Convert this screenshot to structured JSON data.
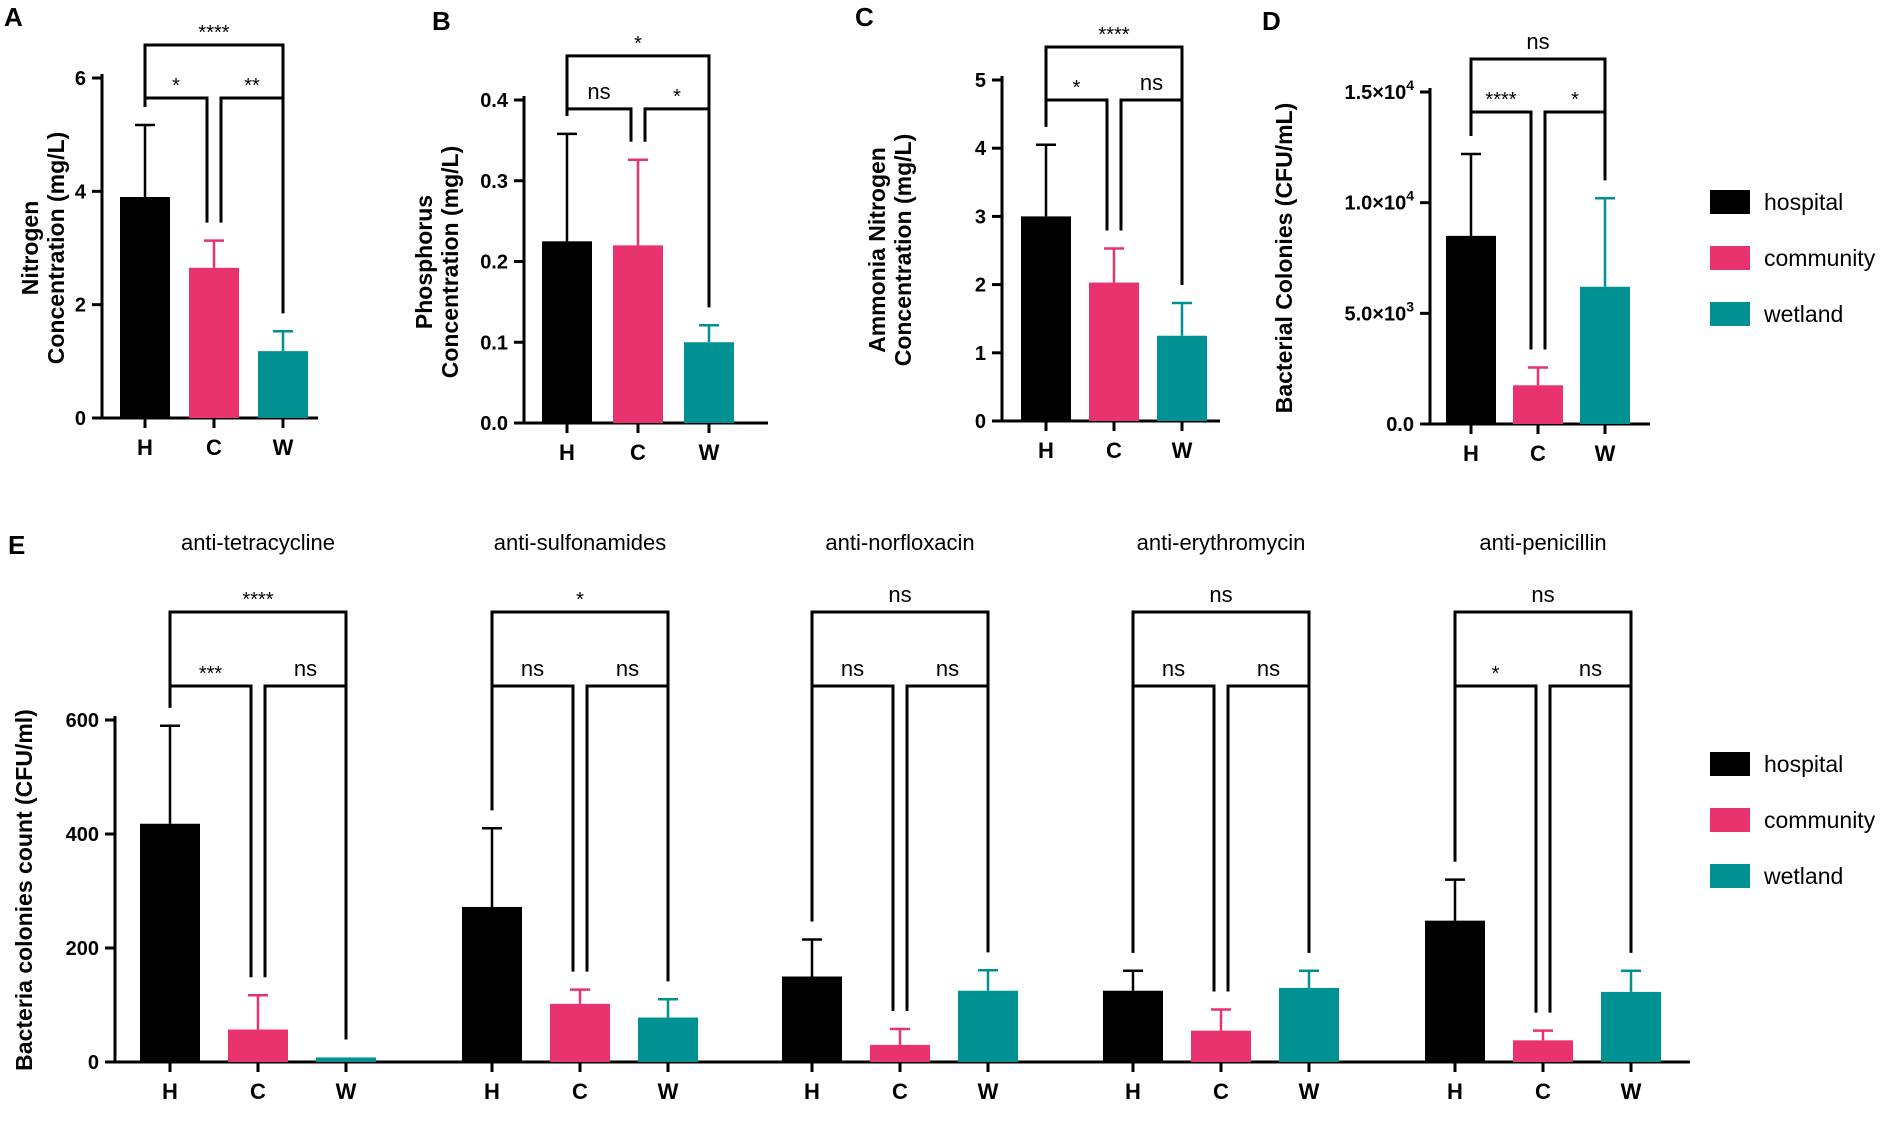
{
  "colors": {
    "hospital": "#000000",
    "community": "#e8336e",
    "wetland": "#009292"
  },
  "legend": [
    {
      "key": "hospital",
      "label": "hospital"
    },
    {
      "key": "community",
      "label": "community"
    },
    {
      "key": "wetland",
      "label": "wetland"
    }
  ],
  "chart_data": [
    {
      "panel": "A",
      "type": "bar",
      "ylabel": [
        "Nitrogen",
        "Concentration (mg/L)"
      ],
      "categories": [
        "H",
        "C",
        "W"
      ],
      "series_keys": [
        "hospital",
        "community",
        "wetland"
      ],
      "values": [
        3.9,
        2.65,
        1.18
      ],
      "errors": [
        1.27,
        0.48,
        0.35
      ],
      "ylim": [
        0,
        6
      ],
      "ticks": [
        0,
        2,
        4,
        6
      ],
      "tick_labels": [
        "0",
        "2",
        "4",
        "6"
      ],
      "comparisons": [
        {
          "from": 0,
          "to": 1,
          "label": "*"
        },
        {
          "from": 1,
          "to": 2,
          "label": "**"
        },
        {
          "from": 0,
          "to": 2,
          "label": "****"
        }
      ]
    },
    {
      "panel": "B",
      "type": "bar",
      "ylabel": [
        "Phosphorus",
        "Concentration (mg/L)"
      ],
      "categories": [
        "H",
        "C",
        "W"
      ],
      "series_keys": [
        "hospital",
        "community",
        "wetland"
      ],
      "values": [
        0.225,
        0.22,
        0.1
      ],
      "errors": [
        0.133,
        0.106,
        0.021
      ],
      "ylim": [
        0,
        0.4
      ],
      "ticks": [
        0,
        0.1,
        0.2,
        0.3,
        0.4
      ],
      "tick_labels": [
        "0.0",
        "0.1",
        "0.2",
        "0.3",
        "0.4"
      ],
      "comparisons": [
        {
          "from": 0,
          "to": 1,
          "label": "ns"
        },
        {
          "from": 1,
          "to": 2,
          "label": "*"
        },
        {
          "from": 0,
          "to": 2,
          "label": "*"
        }
      ]
    },
    {
      "panel": "C",
      "type": "bar",
      "ylabel": [
        "Ammonia Nitrogen",
        "Concentration (mg/L)"
      ],
      "categories": [
        "H",
        "C",
        "W"
      ],
      "series_keys": [
        "hospital",
        "community",
        "wetland"
      ],
      "values": [
        3.0,
        2.03,
        1.25
      ],
      "errors": [
        1.05,
        0.5,
        0.48
      ],
      "ylim": [
        0,
        5
      ],
      "ticks": [
        0,
        1,
        2,
        3,
        4,
        5
      ],
      "tick_labels": [
        "0",
        "1",
        "2",
        "3",
        "4",
        "5"
      ],
      "comparisons": [
        {
          "from": 0,
          "to": 1,
          "label": "*"
        },
        {
          "from": 1,
          "to": 2,
          "label": "ns"
        },
        {
          "from": 0,
          "to": 2,
          "label": "****"
        }
      ]
    },
    {
      "panel": "D",
      "type": "bar",
      "ylabel": [
        "Bacterial Colonies (CFU/mL)"
      ],
      "categories": [
        "H",
        "C",
        "W"
      ],
      "series_keys": [
        "hospital",
        "community",
        "wetland"
      ],
      "values": [
        8500,
        1750,
        6200
      ],
      "errors": [
        3700,
        800,
        4000
      ],
      "ylim": [
        0,
        15000
      ],
      "ticks": [
        0,
        5000,
        10000,
        15000
      ],
      "tick_labels": [
        {
          "base": "0.0"
        },
        {
          "base": "5.0×10",
          "exp": "3"
        },
        {
          "base": "1.0×10",
          "exp": "4"
        },
        {
          "base": "1.5×10",
          "exp": "4"
        }
      ],
      "comparisons": [
        {
          "from": 0,
          "to": 1,
          "label": "****"
        },
        {
          "from": 1,
          "to": 2,
          "label": "*"
        },
        {
          "from": 0,
          "to": 2,
          "label": "ns"
        }
      ]
    },
    {
      "panel": "E",
      "type": "bar",
      "ylabel": [
        "Bacteria  colonies count (CFU/ml)"
      ],
      "ylim": [
        0,
        600
      ],
      "ticks": [
        0,
        200,
        400,
        600
      ],
      "tick_labels": [
        "0",
        "200",
        "400",
        "600"
      ],
      "series_keys": [
        "hospital",
        "community",
        "wetland"
      ],
      "groups": [
        {
          "title": "anti-tetracycline",
          "categories": [
            "H",
            "C",
            "W"
          ],
          "values": [
            418,
            57,
            8
          ],
          "errors": [
            172,
            60,
            0
          ],
          "comparisons": [
            {
              "from": 0,
              "to": 1,
              "label": "***"
            },
            {
              "from": 1,
              "to": 2,
              "label": "ns"
            },
            {
              "from": 0,
              "to": 2,
              "label": "****"
            }
          ]
        },
        {
          "title": "anti-sulfonamides",
          "categories": [
            "H",
            "C",
            "W"
          ],
          "values": [
            272,
            102,
            78
          ],
          "errors": [
            138,
            25,
            32
          ],
          "comparisons": [
            {
              "from": 0,
              "to": 1,
              "label": "ns"
            },
            {
              "from": 1,
              "to": 2,
              "label": "ns"
            },
            {
              "from": 0,
              "to": 2,
              "label": "*"
            }
          ]
        },
        {
          "title": "anti-norfloxacin",
          "categories": [
            "H",
            "C",
            "W"
          ],
          "values": [
            150,
            30,
            125
          ],
          "errors": [
            65,
            28,
            36
          ],
          "comparisons": [
            {
              "from": 0,
              "to": 1,
              "label": "ns"
            },
            {
              "from": 1,
              "to": 2,
              "label": "ns"
            },
            {
              "from": 0,
              "to": 2,
              "label": "ns"
            }
          ]
        },
        {
          "title": "anti-erythromycin",
          "categories": [
            "H",
            "C",
            "W"
          ],
          "values": [
            125,
            55,
            130
          ],
          "errors": [
            35,
            37,
            30
          ],
          "comparisons": [
            {
              "from": 0,
              "to": 1,
              "label": "ns"
            },
            {
              "from": 1,
              "to": 2,
              "label": "ns"
            },
            {
              "from": 0,
              "to": 2,
              "label": "ns"
            }
          ]
        },
        {
          "title": "anti-penicillin",
          "categories": [
            "H",
            "C",
            "W"
          ],
          "values": [
            248,
            38,
            123
          ],
          "errors": [
            72,
            17,
            37
          ],
          "comparisons": [
            {
              "from": 0,
              "to": 1,
              "label": "*"
            },
            {
              "from": 1,
              "to": 2,
              "label": "ns"
            },
            {
              "from": 0,
              "to": 2,
              "label": "ns"
            }
          ]
        }
      ]
    }
  ]
}
